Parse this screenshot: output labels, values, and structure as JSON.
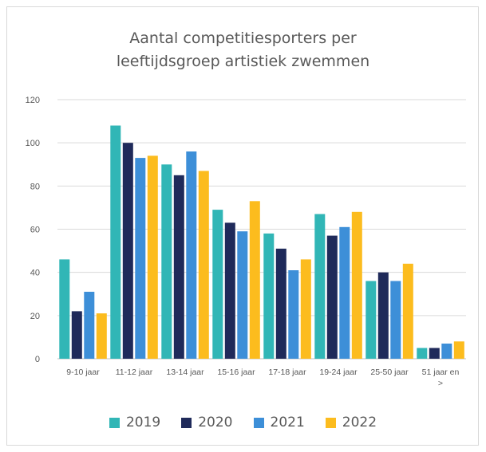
{
  "chart_data": {
    "type": "bar",
    "title": [
      "Aantal competitiesporters per",
      "leeftijdsgroep artistiek zwemmen"
    ],
    "categories": [
      [
        "9-10 jaar"
      ],
      [
        "11-12 jaar"
      ],
      [
        "13-14 jaar"
      ],
      [
        "15-16 jaar"
      ],
      [
        "17-18 jaar"
      ],
      [
        "19-24 jaar"
      ],
      [
        "25-50 jaar"
      ],
      [
        "51 jaar en",
        ">"
      ]
    ],
    "series": [
      {
        "name": "2019",
        "color": "#31b6b6",
        "values": [
          46,
          108,
          90,
          69,
          58,
          67,
          36,
          5
        ]
      },
      {
        "name": "2020",
        "color": "#1f2a5a",
        "values": [
          22,
          100,
          85,
          63,
          51,
          57,
          40,
          5
        ]
      },
      {
        "name": "2021",
        "color": "#3d8fd8",
        "values": [
          31,
          93,
          96,
          59,
          41,
          61,
          36,
          7
        ]
      },
      {
        "name": "2022",
        "color": "#fcbc1e",
        "values": [
          21,
          94,
          87,
          73,
          46,
          68,
          44,
          8
        ]
      }
    ],
    "ylim": [
      0,
      120
    ],
    "yticks": [
      0,
      20,
      40,
      60,
      80,
      100,
      120
    ],
    "grid": true,
    "legend": "bottom"
  }
}
